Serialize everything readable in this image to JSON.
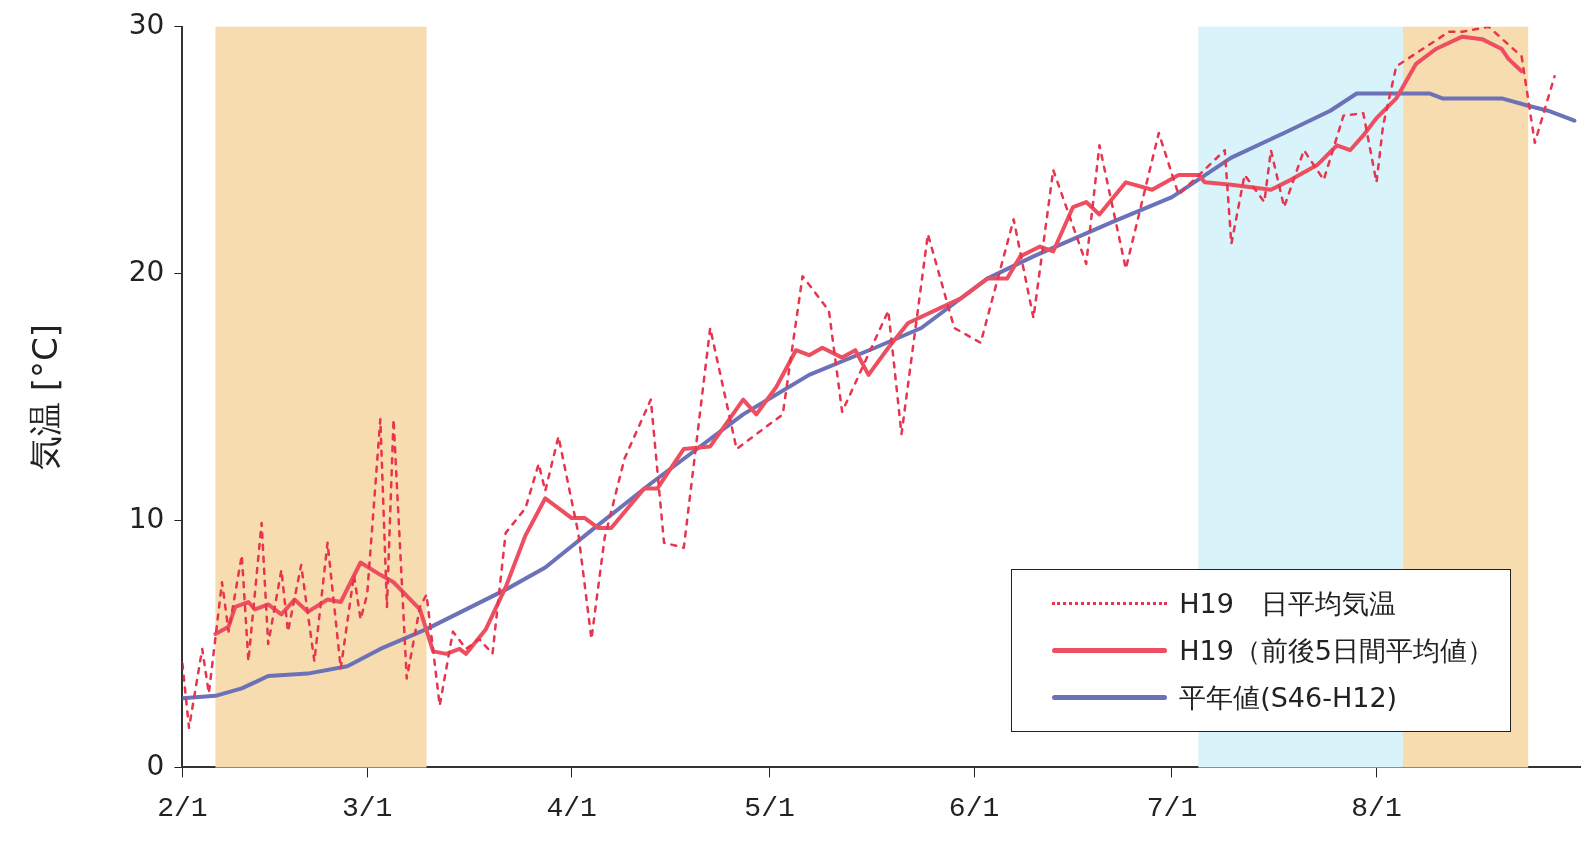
{
  "chart_data": {
    "type": "line",
    "ylabel": "気温 [°C]",
    "xlim": [
      "--02-01",
      "--09-01"
    ],
    "xticks": [
      {
        "value": "--02-01",
        "label": "2/1"
      },
      {
        "value": "--03-01",
        "label": "3/1"
      },
      {
        "value": "--04-01",
        "label": "4/1"
      },
      {
        "value": "--05-01",
        "label": "5/1"
      },
      {
        "value": "--06-01",
        "label": "6/1"
      },
      {
        "value": "--07-01",
        "label": "7/1"
      },
      {
        "value": "--08-01",
        "label": "8/1"
      }
    ],
    "ylim": [
      0,
      30
    ],
    "yticks": [
      0,
      10,
      20,
      30
    ],
    "grid": false,
    "legend": "bottom right",
    "marker": "none",
    "bands": [
      {
        "axis": "x",
        "from": "--02-06",
        "to": "--03-10",
        "color": "#f6dcae"
      },
      {
        "axis": "x",
        "from": "--07-05",
        "to": "--08-05",
        "color": "#d8f3fa"
      },
      {
        "axis": "x",
        "from": "--08-05",
        "to": "--08-24",
        "color": "#f6dcae"
      }
    ],
    "series": [
      {
        "name": "H19　日平均気温",
        "color": "#e8344e",
        "line_style": "dotted",
        "x": [
          "--02-01",
          "--02-02",
          "--02-04",
          "--02-05",
          "--02-07",
          "--02-08",
          "--02-10",
          "--02-11",
          "--02-13",
          "--02-14",
          "--02-16",
          "--02-17",
          "--02-19",
          "--02-21",
          "--02-23",
          "--02-25",
          "--02-27",
          "--02-28",
          "--03-01",
          "--03-03",
          "--03-04",
          "--03-05",
          "--03-07",
          "--03-09",
          "--03-10",
          "--03-12",
          "--03-14",
          "--03-16",
          "--03-18",
          "--03-20",
          "--03-22",
          "--03-25",
          "--03-27",
          "--03-28",
          "--03-30",
          "--04-02",
          "--04-04",
          "--04-06",
          "--04-09",
          "--04-13",
          "--04-15",
          "--04-18",
          "--04-22",
          "--04-26",
          "--05-03",
          "--05-06",
          "--05-10",
          "--05-12",
          "--05-19",
          "--05-21",
          "--05-25",
          "--05-29",
          "--06-02",
          "--06-07",
          "--06-10",
          "--06-13",
          "--06-18",
          "--06-20",
          "--06-24",
          "--06-29",
          "--07-02",
          "--07-09",
          "--07-10",
          "--07-12",
          "--07-15",
          "--07-16",
          "--07-18",
          "--07-21",
          "--07-24",
          "--07-27",
          "--07-30",
          "--08-01",
          "--08-02",
          "--08-04",
          "--08-12",
          "--08-14",
          "--08-18",
          "--08-23",
          "--08-25",
          "--08-28"
        ],
        "values": [
          4.2,
          1.6,
          4.8,
          3.0,
          7.5,
          5.5,
          8.6,
          4.3,
          9.9,
          5.0,
          8.0,
          5.5,
          8.2,
          4.3,
          9.1,
          4.0,
          7.8,
          6.0,
          7.0,
          14.1,
          6.5,
          14.1,
          3.6,
          6.5,
          7.0,
          2.5,
          5.5,
          4.8,
          5.2,
          4.6,
          9.5,
          10.5,
          12.3,
          11.2,
          13.4,
          9.5,
          5.2,
          9.3,
          12.5,
          14.9,
          9.1,
          8.9,
          17.8,
          12.9,
          14.3,
          19.9,
          18.5,
          14.4,
          18.5,
          13.5,
          21.6,
          17.8,
          17.2,
          22.2,
          18.2,
          24.2,
          20.4,
          25.2,
          20.2,
          25.7,
          23.2,
          25.0,
          21.2,
          24.0,
          22.9,
          25.0,
          22.7,
          25.0,
          23.8,
          26.4,
          26.5,
          23.7,
          26.0,
          28.4,
          29.8,
          29.8,
          30.0,
          28.8,
          25.3,
          28.0
        ]
      },
      {
        "name": "H19（前後5日間平均値）",
        "color": "#ee4f60",
        "line_style": "solid",
        "x": [
          "--02-06",
          "--02-08",
          "--02-09",
          "--02-11",
          "--02-12",
          "--02-14",
          "--02-16",
          "--02-18",
          "--02-20",
          "--02-23",
          "--02-25",
          "--02-28",
          "--03-03",
          "--03-05",
          "--03-09",
          "--03-11",
          "--03-13",
          "--03-15",
          "--03-16",
          "--03-19",
          "--03-22",
          "--03-25",
          "--03-28",
          "--04-01",
          "--04-03",
          "--04-05",
          "--04-07",
          "--04-12",
          "--04-14",
          "--04-18",
          "--04-22",
          "--04-27",
          "--04-29",
          "--05-02",
          "--05-05",
          "--05-07",
          "--05-09",
          "--05-12",
          "--05-14",
          "--05-16",
          "--05-19",
          "--05-22",
          "--05-30",
          "--06-03",
          "--06-06",
          "--06-08",
          "--06-11",
          "--06-13",
          "--06-16",
          "--06-18",
          "--06-20",
          "--06-24",
          "--06-28",
          "--07-02",
          "--07-05",
          "--07-06",
          "--07-10",
          "--07-16",
          "--07-19",
          "--07-23",
          "--07-26",
          "--07-28",
          "--07-30",
          "--08-01",
          "--08-04",
          "--08-07",
          "--08-10",
          "--08-14",
          "--08-17",
          "--08-20",
          "--08-21",
          "--08-23"
        ],
        "values": [
          5.4,
          5.7,
          6.5,
          6.7,
          6.4,
          6.6,
          6.2,
          6.8,
          6.3,
          6.8,
          6.7,
          8.3,
          7.8,
          7.5,
          6.4,
          4.7,
          4.6,
          4.8,
          4.6,
          5.6,
          7.3,
          9.4,
          10.9,
          10.1,
          10.1,
          9.7,
          9.7,
          11.3,
          11.3,
          12.9,
          13.0,
          14.9,
          14.3,
          15.4,
          16.9,
          16.7,
          17.0,
          16.6,
          16.9,
          15.9,
          17.0,
          18.0,
          19.0,
          19.8,
          19.8,
          20.7,
          21.1,
          20.9,
          22.7,
          22.9,
          22.4,
          23.7,
          23.4,
          24.0,
          24.0,
          23.7,
          23.6,
          23.4,
          23.8,
          24.4,
          25.2,
          25.0,
          25.6,
          26.3,
          27.1,
          28.5,
          29.1,
          29.6,
          29.5,
          29.1,
          28.7,
          28.2
        ]
      },
      {
        "name": "平年値(S46-H12)",
        "color": "#6b72b8",
        "line_style": "solid",
        "x": [
          "--02-01",
          "--02-06",
          "--02-10",
          "--02-14",
          "--02-20",
          "--02-26",
          "--03-03",
          "--03-10",
          "--03-16",
          "--03-22",
          "--03-28",
          "--04-04",
          "--04-13",
          "--04-17",
          "--04-27",
          "--05-07",
          "--05-17",
          "--05-24",
          "--06-03",
          "--06-10",
          "--06-22",
          "--07-01",
          "--07-10",
          "--07-18",
          "--07-25",
          "--07-29",
          "--08-09",
          "--08-11",
          "--08-20",
          "--08-24",
          "--08-27",
          "--08-31"
        ],
        "values": [
          2.8,
          2.9,
          3.2,
          3.7,
          3.8,
          4.1,
          4.8,
          5.6,
          6.4,
          7.2,
          8.1,
          9.6,
          11.5,
          12.3,
          14.3,
          15.9,
          17.0,
          17.8,
          19.8,
          20.7,
          22.1,
          23.1,
          24.7,
          25.7,
          26.6,
          27.3,
          27.3,
          27.1,
          27.1,
          26.8,
          26.6,
          26.2
        ]
      }
    ]
  }
}
